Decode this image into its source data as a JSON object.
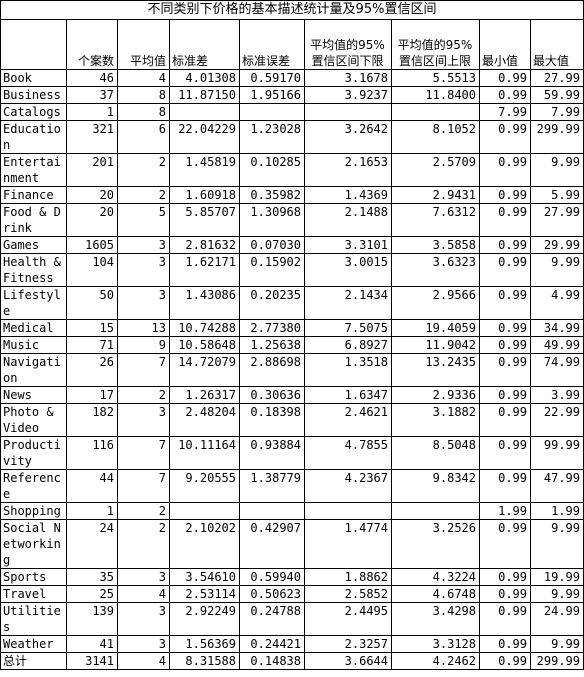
{
  "title": "不同类别下价格的基本描述统计量及95%置信区间",
  "headers": {
    "category": "",
    "count": "个案数",
    "mean": "平均值",
    "sd": "标准差",
    "se": "标准误差",
    "ci_low": "平均值的95% 置信区间下限",
    "ci_high": "平均值的95% 置信区间上限",
    "min": "最小值",
    "max": "最大值"
  },
  "rows": [
    {
      "category": "Book",
      "count": "46",
      "mean": "4",
      "sd": "4.01308",
      "se": "0.59170",
      "ci_low": "3.1678",
      "ci_high": "5.5513",
      "min": "0.99",
      "max": "27.99"
    },
    {
      "category": "Business",
      "count": "37",
      "mean": "8",
      "sd": "11.87150",
      "se": "1.95166",
      "ci_low": "3.9237",
      "ci_high": "11.8400",
      "min": "0.99",
      "max": "59.99"
    },
    {
      "category": "Catalogs",
      "count": "1",
      "mean": "8",
      "sd": "",
      "se": "",
      "ci_low": "",
      "ci_high": "",
      "min": "7.99",
      "max": "7.99"
    },
    {
      "category": "Education",
      "count": "321",
      "mean": "6",
      "sd": "22.04229",
      "se": "1.23028",
      "ci_low": "3.2642",
      "ci_high": "8.1052",
      "min": "0.99",
      "max": "299.99"
    },
    {
      "category": "Entertainment",
      "count": "201",
      "mean": "2",
      "sd": "1.45819",
      "se": "0.10285",
      "ci_low": "2.1653",
      "ci_high": "2.5709",
      "min": "0.99",
      "max": "9.99"
    },
    {
      "category": "Finance",
      "count": "20",
      "mean": "2",
      "sd": "1.60918",
      "se": "0.35982",
      "ci_low": "1.4369",
      "ci_high": "2.9431",
      "min": "0.99",
      "max": "5.99"
    },
    {
      "category": "Food & Drink",
      "count": "20",
      "mean": "5",
      "sd": "5.85707",
      "se": "1.30968",
      "ci_low": "2.1488",
      "ci_high": "7.6312",
      "min": "0.99",
      "max": "27.99"
    },
    {
      "category": "Games",
      "count": "1605",
      "mean": "3",
      "sd": "2.81632",
      "se": "0.07030",
      "ci_low": "3.3101",
      "ci_high": "3.5858",
      "min": "0.99",
      "max": "29.99"
    },
    {
      "category": "Health & Fitness",
      "count": "104",
      "mean": "3",
      "sd": "1.62171",
      "se": "0.15902",
      "ci_low": "3.0015",
      "ci_high": "3.6323",
      "min": "0.99",
      "max": "9.99"
    },
    {
      "category": "Lifestyle",
      "count": "50",
      "mean": "3",
      "sd": "1.43086",
      "se": "0.20235",
      "ci_low": "2.1434",
      "ci_high": "2.9566",
      "min": "0.99",
      "max": "4.99"
    },
    {
      "category": "Medical",
      "count": "15",
      "mean": "13",
      "sd": "10.74288",
      "se": "2.77380",
      "ci_low": "7.5075",
      "ci_high": "19.4059",
      "min": "0.99",
      "max": "34.99"
    },
    {
      "category": "Music",
      "count": "71",
      "mean": "9",
      "sd": "10.58648",
      "se": "1.25638",
      "ci_low": "6.8927",
      "ci_high": "11.9042",
      "min": "0.99",
      "max": "49.99"
    },
    {
      "category": "Navigation",
      "count": "26",
      "mean": "7",
      "sd": "14.72079",
      "se": "2.88698",
      "ci_low": "1.3518",
      "ci_high": "13.2435",
      "min": "0.99",
      "max": "74.99"
    },
    {
      "category": "News",
      "count": "17",
      "mean": "2",
      "sd": "1.26317",
      "se": "0.30636",
      "ci_low": "1.6347",
      "ci_high": "2.9336",
      "min": "0.99",
      "max": "3.99"
    },
    {
      "category": "Photo & Video",
      "count": "182",
      "mean": "3",
      "sd": "2.48204",
      "se": "0.18398",
      "ci_low": "2.4621",
      "ci_high": "3.1882",
      "min": "0.99",
      "max": "22.99"
    },
    {
      "category": "Productivity",
      "count": "116",
      "mean": "7",
      "sd": "10.11164",
      "se": "0.93884",
      "ci_low": "4.7855",
      "ci_high": "8.5048",
      "min": "0.99",
      "max": "99.99"
    },
    {
      "category": "Reference",
      "count": "44",
      "mean": "7",
      "sd": "9.20555",
      "se": "1.38779",
      "ci_low": "4.2367",
      "ci_high": "9.8342",
      "min": "0.99",
      "max": "47.99"
    },
    {
      "category": "Shopping",
      "count": "1",
      "mean": "2",
      "sd": "",
      "se": "",
      "ci_low": "",
      "ci_high": "",
      "min": "1.99",
      "max": "1.99"
    },
    {
      "category": "Social Networking",
      "count": "24",
      "mean": "2",
      "sd": "2.10202",
      "se": "0.42907",
      "ci_low": "1.4774",
      "ci_high": "3.2526",
      "min": "0.99",
      "max": "9.99"
    },
    {
      "category": "Sports",
      "count": "35",
      "mean": "3",
      "sd": "3.54610",
      "se": "0.59940",
      "ci_low": "1.8862",
      "ci_high": "4.3224",
      "min": "0.99",
      "max": "19.99"
    },
    {
      "category": "Travel",
      "count": "25",
      "mean": "4",
      "sd": "2.53114",
      "se": "0.50623",
      "ci_low": "2.5852",
      "ci_high": "4.6748",
      "min": "0.99",
      "max": "9.99"
    },
    {
      "category": "Utilities",
      "count": "139",
      "mean": "3",
      "sd": "2.92249",
      "se": "0.24788",
      "ci_low": "2.4495",
      "ci_high": "3.4298",
      "min": "0.99",
      "max": "24.99"
    },
    {
      "category": "Weather",
      "count": "41",
      "mean": "3",
      "sd": "1.56369",
      "se": "0.24421",
      "ci_low": "2.3257",
      "ci_high": "3.3128",
      "min": "0.99",
      "max": "9.99"
    },
    {
      "category": "总计",
      "count": "3141",
      "mean": "4",
      "sd": "8.31588",
      "se": "0.14838",
      "ci_low": "3.6644",
      "ci_high": "4.2462",
      "min": "0.99",
      "max": "299.99"
    }
  ]
}
